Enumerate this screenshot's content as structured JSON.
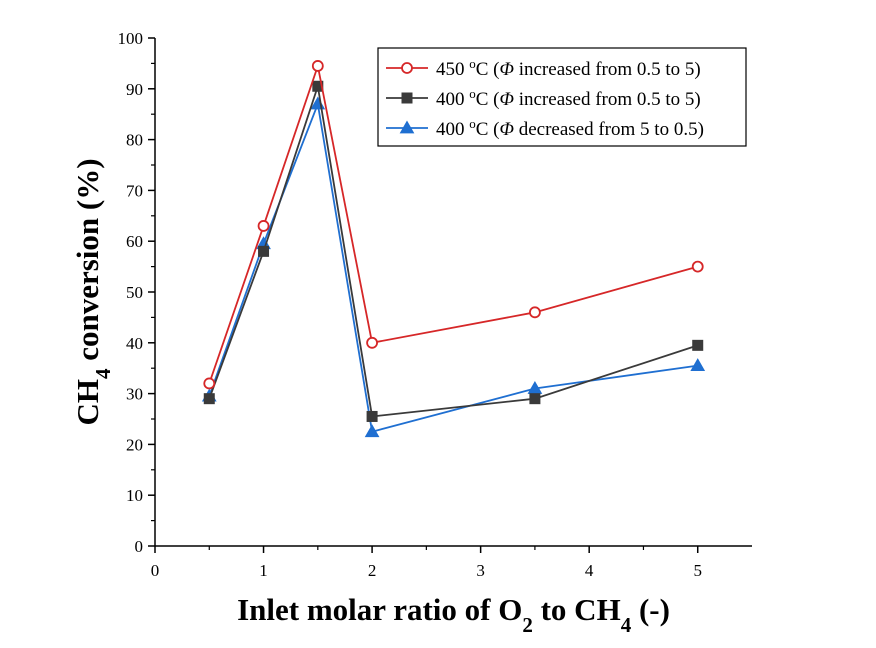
{
  "chart_data": {
    "type": "line",
    "xlabel": {
      "pre": "Inlet molar ratio of O",
      "sub1": "2",
      "mid": " to CH",
      "sub2": "4",
      "post": " (-)"
    },
    "ylabel": {
      "pre": "CH",
      "sub": "4",
      "post": " conversion (%)"
    },
    "xlim": [
      0,
      5.5
    ],
    "ylim": [
      0,
      100
    ],
    "x_ticks": [
      "0",
      "1",
      "2",
      "3",
      "4",
      "5"
    ],
    "y_ticks": [
      "0",
      "10",
      "20",
      "30",
      "40",
      "50",
      "60",
      "70",
      "80",
      "90",
      "100"
    ],
    "grid": false,
    "legend_position": "top-right",
    "series": [
      {
        "name": {
          "pre": "450 ",
          "sup": "o",
          "unit": "C (",
          "phi": "Φ",
          "post": " increased from 0.5 to 5)"
        },
        "color": "#d62728",
        "marker": "open-circle",
        "x": [
          0.5,
          1.0,
          1.5,
          2.0,
          3.5,
          5.0
        ],
        "y": [
          32.0,
          63.0,
          94.5,
          40.0,
          46.0,
          55.0
        ]
      },
      {
        "name": {
          "pre": "400 ",
          "sup": "o",
          "unit": "C (",
          "phi": "Φ",
          "post": " increased from 0.5 to 5)"
        },
        "color": "#3a3a3a",
        "marker": "square",
        "x": [
          0.5,
          1.0,
          1.5,
          2.0,
          3.5,
          5.0
        ],
        "y": [
          29.0,
          58.0,
          90.5,
          25.5,
          29.0,
          39.5
        ]
      },
      {
        "name": {
          "pre": "400 ",
          "sup": "o",
          "unit": "C (",
          "phi": "Φ",
          "post": " decreased from 5 to 0.5)"
        },
        "color": "#1f6fd1",
        "marker": "triangle",
        "x": [
          0.5,
          1.0,
          1.5,
          2.0,
          3.5,
          5.0
        ],
        "y": [
          29.5,
          59.5,
          87.0,
          22.5,
          31.0,
          35.5
        ]
      }
    ]
  }
}
